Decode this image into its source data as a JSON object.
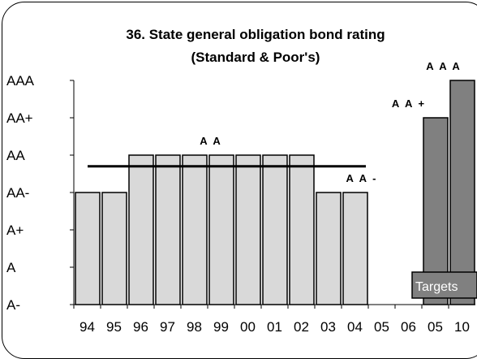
{
  "chart_data": {
    "type": "bar",
    "title": "36. State general obligation bond rating",
    "subtitle": "(Standard & Poor's)",
    "rating_scale": [
      "A-",
      "A",
      "A+",
      "AA-",
      "AA",
      "AA+",
      "AAA"
    ],
    "categories": [
      "94",
      "95",
      "96",
      "97",
      "98",
      "99",
      "00",
      "01",
      "02",
      "03",
      "04",
      "05",
      "06",
      "05",
      "10"
    ],
    "ratings": [
      "AA-",
      "AA-",
      "AA",
      "AA",
      "AA",
      "AA",
      "AA",
      "AA",
      "AA",
      "AA-",
      "AA-",
      null,
      null,
      "AA+",
      "AAA"
    ],
    "values": [
      3,
      3,
      4,
      4,
      4,
      4,
      4,
      4,
      4,
      3,
      3,
      null,
      null,
      5,
      6
    ],
    "target_flags": [
      false,
      false,
      false,
      false,
      false,
      false,
      false,
      false,
      false,
      false,
      false,
      false,
      false,
      true,
      true
    ],
    "average_line_value": 3.7,
    "annotations": [
      {
        "text": "A A",
        "category_index": 5
      },
      {
        "text": "A A -",
        "category_index": 10
      },
      {
        "text": "A A +",
        "category_index": 13
      },
      {
        "text": "A A A",
        "category_index": 14
      }
    ],
    "targets_label": "Targets",
    "ylim": [
      0,
      6
    ],
    "grid": false,
    "colors": {
      "actual": "#d9d9d9",
      "target": "#808080",
      "line": "#000000",
      "targets_box": "#808080"
    }
  }
}
